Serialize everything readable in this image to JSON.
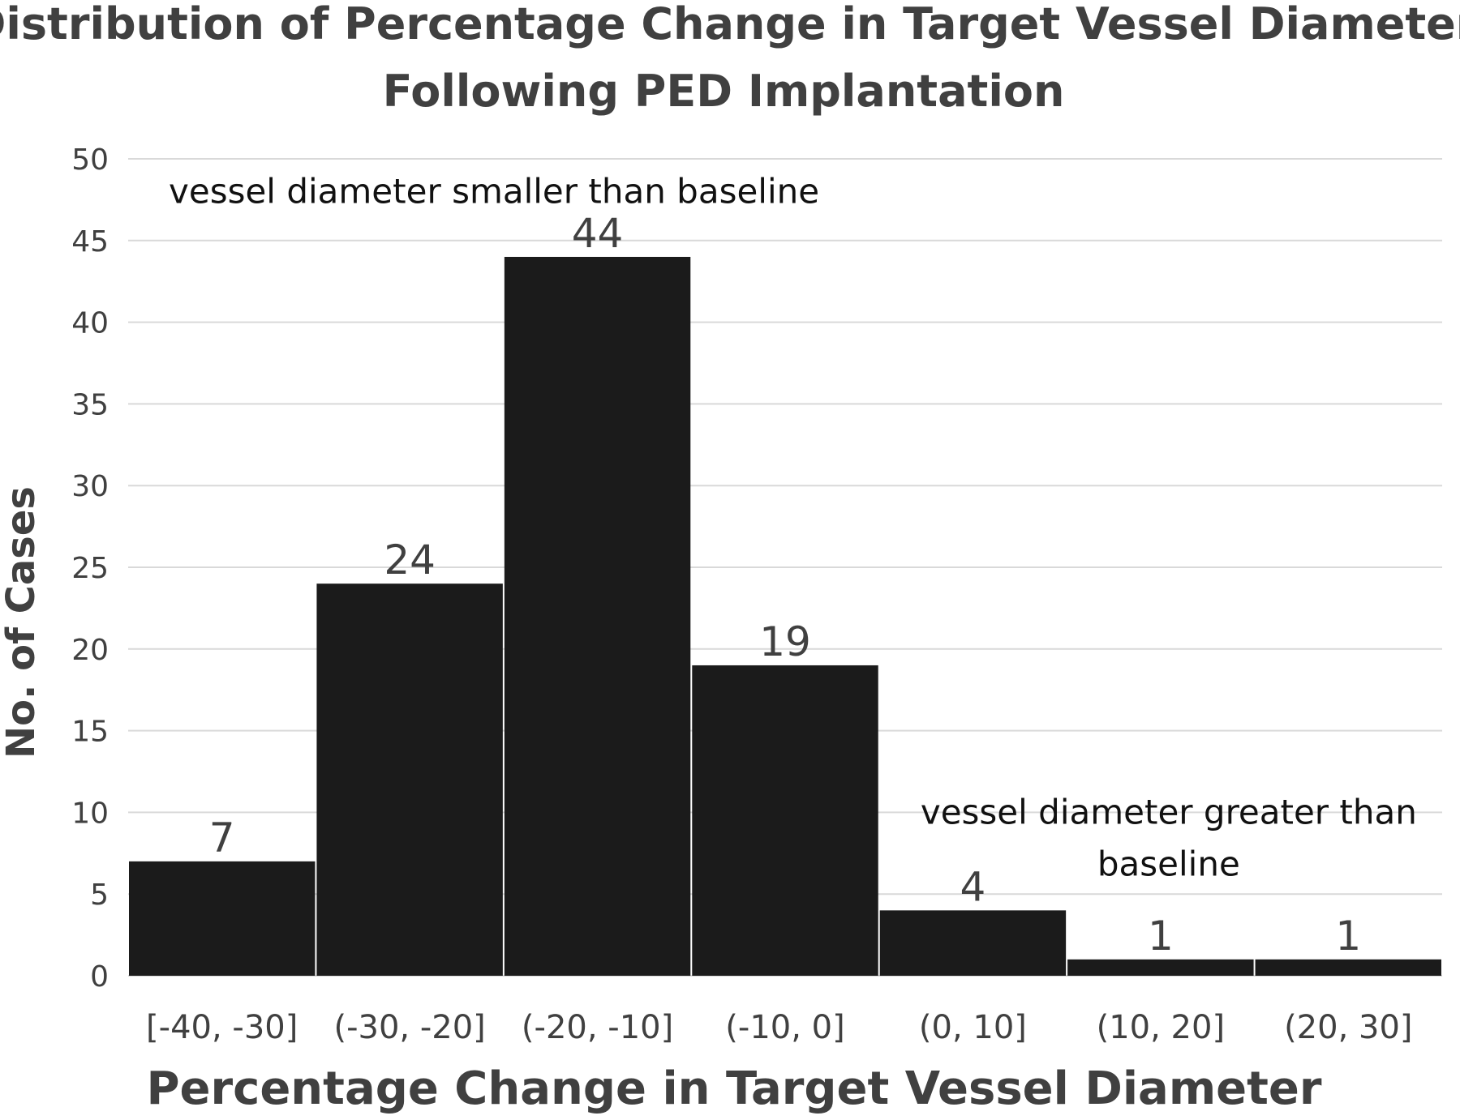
{
  "chart_data": {
    "type": "bar",
    "title_lines": [
      "Distribution of Percentage Change in Target Vessel Diameter",
      "Following PED Implantation"
    ],
    "xlabel": "Percentage Change in Target Vessel Diameter",
    "ylabel": "No. of Cases",
    "categories": [
      "[-40, -30]",
      "(-30, -20]",
      "(-20, -10]",
      "(-10, 0]",
      "(0, 10]",
      "(10, 20]",
      "(20, 30]"
    ],
    "values": [
      7,
      24,
      44,
      19,
      4,
      1,
      1
    ],
    "ylim": [
      0,
      50
    ],
    "yticks": [
      0,
      5,
      10,
      15,
      20,
      25,
      30,
      35,
      40,
      45,
      50
    ],
    "grid": true,
    "bar_color": "#1b1b1b",
    "annotations": [
      {
        "lines": [
          "vessel diameter smaller than baseline"
        ],
        "near_category": "[-40, -30]",
        "at_value": 48
      },
      {
        "lines": [
          "vessel diameter greater than",
          "baseline"
        ],
        "near_category": "(10, 20]",
        "at_value": 10
      }
    ]
  }
}
